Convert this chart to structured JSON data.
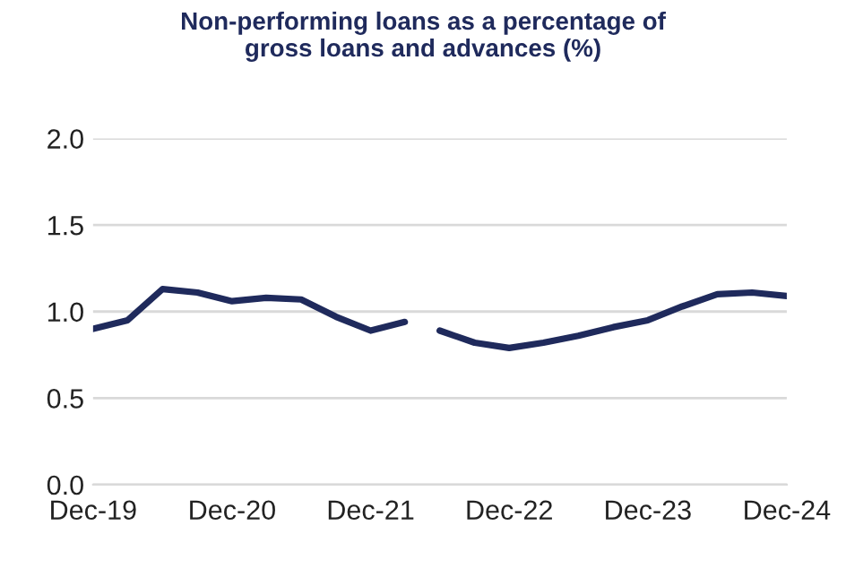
{
  "chart_data": {
    "type": "line",
    "title": "Non-performing loans as a percentage of\ngross loans and advances (%)",
    "series": [
      {
        "color": "#1f2a5c",
        "x": [
          "2019-12",
          "2020-03",
          "2020-06",
          "2020-09",
          "2020-12",
          "2021-03",
          "2021-06",
          "2021-09",
          "2021-12",
          "2022-03"
        ],
        "values": [
          0.9,
          0.95,
          1.13,
          1.11,
          1.06,
          1.08,
          1.07,
          0.97,
          0.89,
          0.94
        ]
      },
      {
        "color": "#1f2a5c",
        "x": [
          "2022-06",
          "2022-09",
          "2022-12",
          "2023-03",
          "2023-06",
          "2023-09",
          "2023-12",
          "2024-03",
          "2024-06",
          "2024-09",
          "2024-12"
        ],
        "values": [
          0.89,
          0.82,
          0.79,
          0.82,
          0.86,
          0.91,
          0.95,
          1.03,
          1.1,
          1.11,
          1.09
        ]
      }
    ],
    "xlim": [
      "2019-12",
      "2024-12"
    ],
    "xticks": [
      {
        "value": "2019-12",
        "label": "Dec-19"
      },
      {
        "value": "2020-12",
        "label": "Dec-20"
      },
      {
        "value": "2021-12",
        "label": "Dec-21"
      },
      {
        "value": "2022-12",
        "label": "Dec-22"
      },
      {
        "value": "2023-12",
        "label": "Dec-23"
      },
      {
        "value": "2024-12",
        "label": "Dec-24"
      }
    ],
    "ylim": [
      0,
      2.0
    ],
    "yticks": [
      {
        "value": 0,
        "label": "0.0"
      },
      {
        "value": 0.5,
        "label": "0.5"
      },
      {
        "value": 1.0,
        "label": "1.0"
      },
      {
        "value": 1.5,
        "label": "1.5"
      },
      {
        "value": 2.0,
        "label": "2.0"
      }
    ],
    "grid": "y",
    "marker": "none",
    "line_style": "solid"
  }
}
